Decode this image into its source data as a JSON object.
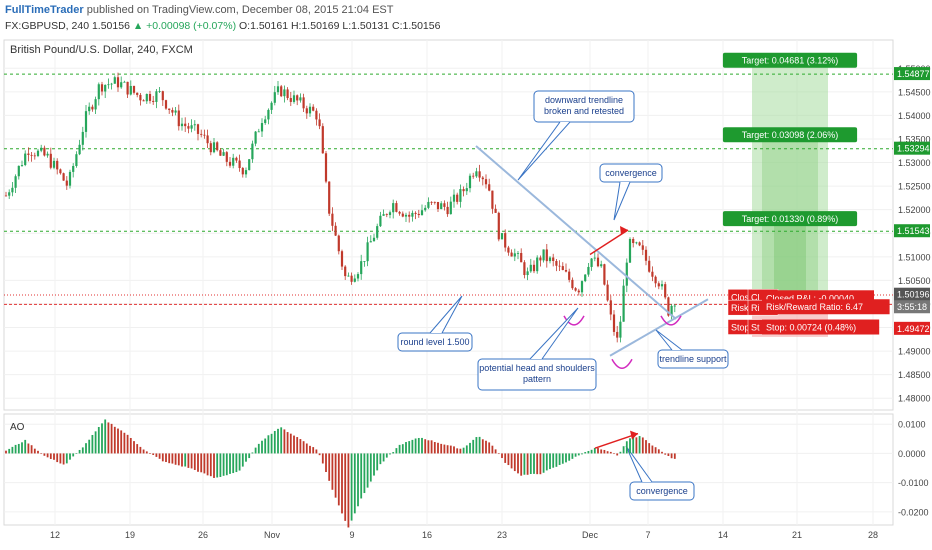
{
  "header": {
    "brand": "FullTimeTrader",
    "published": "published on TradingView.com, December 08, 2015 21:04 EST",
    "symbol_line": "FX:GBPUSD, 240",
    "last": "1.50156",
    "change": "+0.00098 (+0.07%)",
    "o": "O:1.50161",
    "h": "H:1.50169",
    "l": "L:1.50131",
    "c": "C:1.50156"
  },
  "chart_title": "British Pound/U.S. Dollar, 240, FXCM",
  "indicator_title": "AO",
  "colors": {
    "up_candle": "#26a65b",
    "down_candle": "#c0392b",
    "target_green": "#1e9a2f",
    "stop_red": "#e02020",
    "trendline_blue": "#9bb8dc",
    "callout_border": "#3a74c4",
    "callout_text": "#1a3f8c"
  },
  "chart_data": {
    "type": "candlestick",
    "price_axis": {
      "ticks": [
        "1.55000",
        "1.54500",
        "1.54000",
        "1.53500",
        "1.53000",
        "1.52500",
        "1.52000",
        "1.51500",
        "1.51000",
        "1.50500",
        "1.50000",
        "1.49500",
        "1.49000",
        "1.48500",
        "1.48000"
      ],
      "range": [
        1.4775,
        1.556
      ]
    },
    "time_axis": {
      "ticks": [
        "12",
        "19",
        "26",
        "Nov",
        "9",
        "16",
        "23",
        "Dec",
        "7",
        "14",
        "21",
        "28"
      ]
    },
    "price_tags": [
      {
        "text": "1.54877",
        "value": 1.54877,
        "kind": "target"
      },
      {
        "text": "1.53294",
        "value": 1.53294,
        "kind": "target"
      },
      {
        "text": "1.51543",
        "value": 1.51543,
        "kind": "target"
      },
      {
        "text": "1.50196",
        "value": 1.50196,
        "kind": "last"
      },
      {
        "text": "3:55:18",
        "value": 1.4993,
        "kind": "timer"
      },
      {
        "text": "1.49472",
        "value": 1.49472,
        "kind": "stop"
      }
    ],
    "levels": [
      {
        "value": 1.54877,
        "style": "green-dashed"
      },
      {
        "value": 1.53294,
        "style": "green-dashed"
      },
      {
        "value": 1.51543,
        "style": "green-dashed"
      },
      {
        "value": 1.5019,
        "style": "red-dotted"
      },
      {
        "value": 1.4999,
        "style": "red-dashed"
      }
    ],
    "trade_labels": [
      {
        "text": "Target: 0.04681 (3.12%)",
        "value": 1.5516,
        "kind": "target"
      },
      {
        "text": "Target: 0.03098 (2.06%)",
        "value": 1.5358,
        "kind": "target"
      },
      {
        "text": "Target: 0.01330 (0.89%)",
        "value": 1.518,
        "kind": "target"
      },
      {
        "text": "Closed",
        "value": 1.5014,
        "kind": "stop-stack",
        "row": 1
      },
      {
        "text": "Risk",
        "value": 1.4991,
        "kind": "stop-stack",
        "row": 2
      },
      {
        "text": "Closed P&L: -0.00040",
        "value": 1.5012,
        "kind": "stop-main",
        "row": 1
      },
      {
        "text": "Risk/Reward Ratio: 6.47",
        "value": 1.4993,
        "kind": "stop-main",
        "row": 2
      },
      {
        "text": "Stop",
        "value": 1.495,
        "kind": "stop-stack",
        "row": 3
      },
      {
        "text": "Stop: 0.00724 (0.48%)",
        "value": 1.495,
        "kind": "stop-main",
        "row": 3
      }
    ],
    "annotations": [
      {
        "text": "downward trendline broken and retested",
        "lines": [
          "downward trendline",
          "broken and retested"
        ]
      },
      {
        "text": "convergence",
        "lines": [
          "convergence"
        ]
      },
      {
        "text": "round level 1.500",
        "lines": [
          "round level 1.500"
        ]
      },
      {
        "text": "potential head and shoulders pattern",
        "lines": [
          "potential head and shoulders",
          "pattern"
        ]
      },
      {
        "text": "trendline support",
        "lines": [
          "trendline support"
        ]
      },
      {
        "text": "convergence",
        "lines": [
          "convergence"
        ]
      }
    ],
    "ao_axis": {
      "ticks": [
        "0.0100",
        "0.0000",
        "-0.0100",
        "-0.0200"
      ],
      "range": [
        -0.0245,
        0.0135
      ]
    },
    "grid": true
  }
}
